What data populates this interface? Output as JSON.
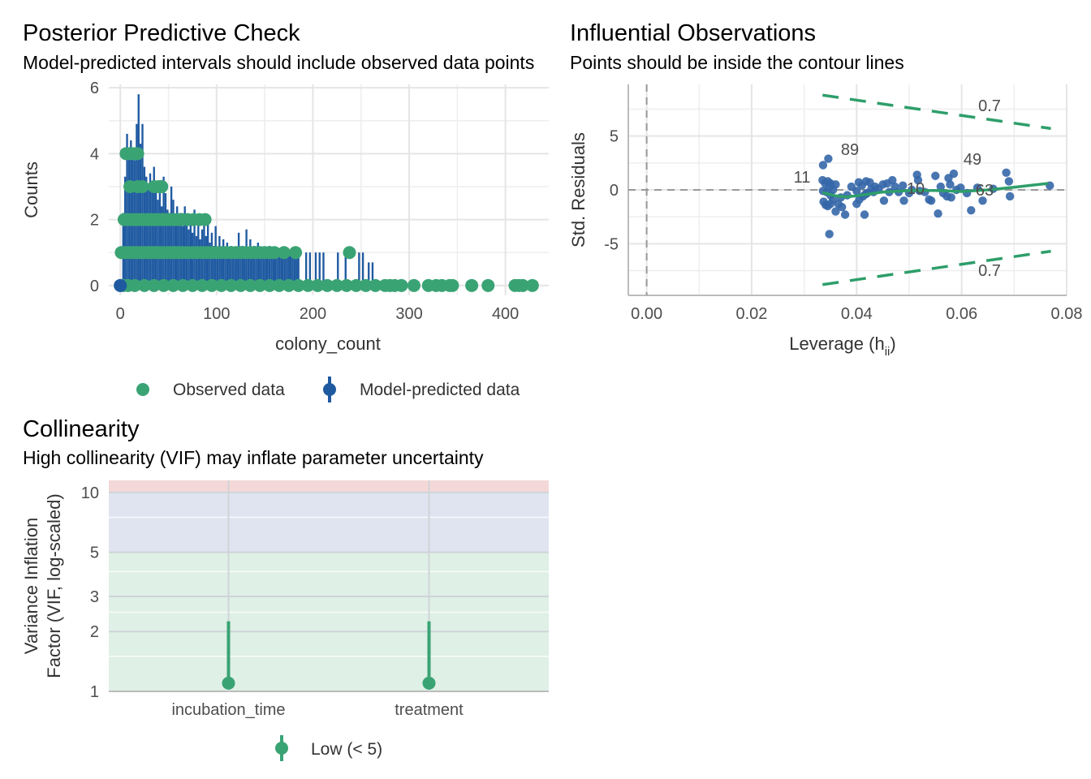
{
  "colors": {
    "observed": "#3aa374",
    "predicted": "#1f5aa1",
    "contour": "#2e9e6a",
    "point_label": "#1f5aa1",
    "vif_high": "#f4d8d8",
    "vif_moderate": "#dfe4f0",
    "vif_low": "#dff0e6"
  },
  "chart_data": [
    {
      "type": "bar",
      "title": "Posterior Predictive Check",
      "subtitle": "Model-predicted intervals should include observed data points",
      "xlabel": "colony_count",
      "ylabel": "Counts",
      "xlim": [
        -12,
        445
      ],
      "ylim": [
        -0.3,
        6.1
      ],
      "xticks": [
        "0",
        "100",
        "200",
        "300",
        "400"
      ],
      "yticks": [
        "0",
        "2",
        "4",
        "6"
      ],
      "legend": [
        "Observed data",
        "Model-predicted data"
      ],
      "legend_position": "bottom",
      "predicted_bars": [
        [
          3,
          2.2
        ],
        [
          5,
          3.3
        ],
        [
          7,
          4.6
        ],
        [
          9,
          3.9
        ],
        [
          11,
          4.4
        ],
        [
          13,
          4.1
        ],
        [
          15,
          3.8
        ],
        [
          17,
          4.9
        ],
        [
          19,
          5.8
        ],
        [
          21,
          4.3
        ],
        [
          23,
          4.9
        ],
        [
          25,
          3.6
        ],
        [
          27,
          3.3
        ],
        [
          29,
          3.0
        ],
        [
          31,
          3.4
        ],
        [
          33,
          3.1
        ],
        [
          35,
          3.6
        ],
        [
          37,
          2.9
        ],
        [
          39,
          2.6
        ],
        [
          41,
          3.1
        ],
        [
          43,
          2.4
        ],
        [
          45,
          3.3
        ],
        [
          47,
          2.8
        ],
        [
          49,
          2.3
        ],
        [
          51,
          2.2
        ],
        [
          53,
          3.0
        ],
        [
          55,
          2.6
        ],
        [
          57,
          2.1
        ],
        [
          59,
          2.4
        ],
        [
          61,
          2.0
        ],
        [
          63,
          2.2
        ],
        [
          65,
          1.8
        ],
        [
          67,
          2.4
        ],
        [
          69,
          1.9
        ],
        [
          71,
          1.7
        ],
        [
          73,
          2.1
        ],
        [
          75,
          1.6
        ],
        [
          77,
          2.3
        ],
        [
          79,
          1.5
        ],
        [
          81,
          1.9
        ],
        [
          83,
          1.4
        ],
        [
          85,
          1.7
        ],
        [
          87,
          2.0
        ],
        [
          89,
          1.5
        ],
        [
          91,
          1.9
        ],
        [
          93,
          1.3
        ],
        [
          95,
          1.6
        ],
        [
          97,
          1.2
        ],
        [
          99,
          1.8
        ],
        [
          101,
          1.0
        ],
        [
          103,
          1.5
        ],
        [
          105,
          1.1
        ],
        [
          107,
          1.4
        ],
        [
          109,
          1.0
        ],
        [
          111,
          1.3
        ],
        [
          113,
          1.0
        ],
        [
          115,
          1.2
        ],
        [
          117,
          0.9
        ],
        [
          119,
          1.1
        ],
        [
          121,
          1.0
        ],
        [
          123,
          1.6
        ],
        [
          125,
          1.0
        ],
        [
          127,
          1.2
        ],
        [
          129,
          1.0
        ],
        [
          131,
          1.7
        ],
        [
          133,
          1.0
        ],
        [
          135,
          1.4
        ],
        [
          137,
          1.0
        ],
        [
          139,
          1.2
        ],
        [
          141,
          1.0
        ],
        [
          143,
          1.3
        ],
        [
          145,
          1.0
        ],
        [
          147,
          1.1
        ],
        [
          149,
          1.0
        ],
        [
          151,
          1.0
        ],
        [
          153,
          1.0
        ],
        [
          155,
          1.2
        ],
        [
          157,
          1.0
        ],
        [
          159,
          1.0
        ],
        [
          161,
          1.0
        ],
        [
          163,
          1.0
        ],
        [
          165,
          1.0
        ],
        [
          167,
          1.0
        ],
        [
          169,
          1.0
        ],
        [
          171,
          1.0
        ],
        [
          173,
          1.0
        ],
        [
          175,
          0.9
        ],
        [
          177,
          1.0
        ],
        [
          179,
          1.0
        ],
        [
          181,
          1.0
        ],
        [
          183,
          1.0
        ],
        [
          185,
          1.0
        ],
        [
          193,
          1.0
        ],
        [
          197,
          1.0
        ],
        [
          203,
          1.0
        ],
        [
          207,
          1.0
        ],
        [
          211,
          1.0
        ],
        [
          226,
          1.0
        ],
        [
          234,
          1.0
        ],
        [
          248,
          1.0
        ],
        [
          252,
          1.0
        ],
        [
          258,
          0.7
        ],
        [
          262,
          0.7
        ]
      ],
      "observed_points": [
        [
          0,
          0
        ],
        [
          3,
          0
        ],
        [
          1,
          1
        ],
        [
          5,
          1
        ],
        [
          9,
          1
        ],
        [
          13,
          1
        ],
        [
          17,
          1
        ],
        [
          21,
          1
        ],
        [
          25,
          1
        ],
        [
          29,
          1
        ],
        [
          33,
          1
        ],
        [
          37,
          1
        ],
        [
          41,
          1
        ],
        [
          45,
          1
        ],
        [
          49,
          1
        ],
        [
          53,
          1
        ],
        [
          57,
          1
        ],
        [
          61,
          1
        ],
        [
          65,
          1
        ],
        [
          70,
          1
        ],
        [
          75,
          1
        ],
        [
          80,
          1
        ],
        [
          85,
          1
        ],
        [
          90,
          1
        ],
        [
          95,
          1
        ],
        [
          100,
          1
        ],
        [
          105,
          1
        ],
        [
          110,
          1
        ],
        [
          115,
          1
        ],
        [
          120,
          1
        ],
        [
          125,
          1
        ],
        [
          130,
          1
        ],
        [
          135,
          1
        ],
        [
          140,
          1
        ],
        [
          145,
          1
        ],
        [
          150,
          1
        ],
        [
          155,
          1
        ],
        [
          160,
          1
        ],
        [
          170,
          1
        ],
        [
          182,
          1
        ],
        [
          238,
          1
        ],
        [
          4,
          2
        ],
        [
          8,
          2
        ],
        [
          12,
          2
        ],
        [
          16,
          2
        ],
        [
          20,
          2
        ],
        [
          24,
          2
        ],
        [
          28,
          2
        ],
        [
          32,
          2
        ],
        [
          36,
          2
        ],
        [
          40,
          2
        ],
        [
          44,
          2
        ],
        [
          48,
          2
        ],
        [
          52,
          2
        ],
        [
          56,
          2
        ],
        [
          60,
          2
        ],
        [
          64,
          2
        ],
        [
          70,
          2
        ],
        [
          76,
          2
        ],
        [
          82,
          2
        ],
        [
          88,
          2
        ],
        [
          10,
          3
        ],
        [
          18,
          3
        ],
        [
          23,
          3
        ],
        [
          35,
          3
        ],
        [
          40,
          3
        ],
        [
          43,
          3
        ],
        [
          6,
          4
        ],
        [
          10,
          4
        ],
        [
          14,
          4
        ],
        [
          18,
          4
        ],
        [
          8,
          0
        ],
        [
          15,
          0
        ],
        [
          25,
          0
        ],
        [
          35,
          0
        ],
        [
          45,
          0
        ],
        [
          55,
          0
        ],
        [
          65,
          0
        ],
        [
          75,
          0
        ],
        [
          85,
          0
        ],
        [
          95,
          0
        ],
        [
          105,
          0
        ],
        [
          115,
          0
        ],
        [
          125,
          0
        ],
        [
          135,
          0
        ],
        [
          145,
          0
        ],
        [
          155,
          0
        ],
        [
          165,
          0
        ],
        [
          175,
          0
        ],
        [
          185,
          0
        ],
        [
          195,
          0
        ],
        [
          205,
          0
        ],
        [
          215,
          0
        ],
        [
          225,
          0
        ],
        [
          235,
          0
        ],
        [
          245,
          0
        ],
        [
          255,
          0
        ],
        [
          265,
          0
        ],
        [
          275,
          0
        ],
        [
          280,
          0
        ],
        [
          285,
          0
        ],
        [
          292,
          0
        ],
        [
          305,
          0
        ],
        [
          320,
          0
        ],
        [
          328,
          0
        ],
        [
          334,
          0
        ],
        [
          342,
          0
        ],
        [
          345,
          0
        ],
        [
          365,
          0
        ],
        [
          382,
          0
        ],
        [
          410,
          0
        ],
        [
          414,
          0
        ],
        [
          418,
          0
        ],
        [
          428,
          0
        ]
      ]
    },
    {
      "type": "scatter",
      "title": "Influential Observations",
      "subtitle": "Points should be inside the contour lines",
      "xlabel": "Leverage (h",
      "xlabel_sub": "ii",
      "xlabel_end": ")",
      "ylabel": "Std. Residuals",
      "xlim": [
        -0.0035,
        0.08
      ],
      "ylim": [
        -9.8,
        9.8
      ],
      "xticks": [
        "0.00",
        "0.02",
        "0.04",
        "0.06",
        "0.08"
      ],
      "yticks": [
        "5",
        "0",
        "-5"
      ],
      "contour_label": "0.7",
      "point_labels": [
        "89",
        "11",
        "49",
        "10",
        "63"
      ],
      "points": [
        [
          0.0336,
          2.3
        ],
        [
          0.0346,
          2.9
        ],
        [
          0.0335,
          0.9
        ],
        [
          0.034,
          0.6
        ],
        [
          0.0345,
          0.8
        ],
        [
          0.035,
          0.6
        ],
        [
          0.0348,
          0.3
        ],
        [
          0.0355,
          0.0
        ],
        [
          0.036,
          0.5
        ],
        [
          0.0336,
          -0.1
        ],
        [
          0.0343,
          -0.2
        ],
        [
          0.035,
          -0.5
        ],
        [
          0.0337,
          -1.1
        ],
        [
          0.0341,
          -1.4
        ],
        [
          0.0345,
          -1.5
        ],
        [
          0.035,
          -1.3
        ],
        [
          0.0355,
          -0.9
        ],
        [
          0.0365,
          -1.3
        ],
        [
          0.036,
          -2.0
        ],
        [
          0.0372,
          -1.6
        ],
        [
          0.0378,
          -2.3
        ],
        [
          0.0348,
          -4.1
        ],
        [
          0.037,
          -0.7
        ],
        [
          0.0382,
          -0.5
        ],
        [
          0.039,
          0.3
        ],
        [
          0.04,
          -0.1
        ],
        [
          0.0405,
          -0.9
        ],
        [
          0.0412,
          -0.6
        ],
        [
          0.0417,
          -0.4
        ],
        [
          0.042,
          -0.3
        ],
        [
          0.0404,
          0.7
        ],
        [
          0.041,
          0.4
        ],
        [
          0.0418,
          0.8
        ],
        [
          0.0425,
          0.7
        ],
        [
          0.0428,
          0.1
        ],
        [
          0.0432,
          -0.2
        ],
        [
          0.0435,
          0.3
        ],
        [
          0.0442,
          0.1
        ],
        [
          0.045,
          0.5
        ],
        [
          0.0458,
          0.6
        ],
        [
          0.0462,
          -0.2
        ],
        [
          0.0468,
          0.9
        ],
        [
          0.0473,
          0.3
        ],
        [
          0.0415,
          -2.3
        ],
        [
          0.04,
          -1.3
        ],
        [
          0.0452,
          -1.0
        ],
        [
          0.048,
          -0.2
        ],
        [
          0.0488,
          0.4
        ],
        [
          0.049,
          -1.0
        ],
        [
          0.05,
          -0.3
        ],
        [
          0.0505,
          0.0
        ],
        [
          0.0515,
          1.4
        ],
        [
          0.0517,
          0.9
        ],
        [
          0.052,
          -0.1
        ],
        [
          0.053,
          -0.2
        ],
        [
          0.0538,
          -0.9
        ],
        [
          0.0542,
          -1.0
        ],
        [
          0.055,
          1.3
        ],
        [
          0.0555,
          -2.2
        ],
        [
          0.056,
          0.3
        ],
        [
          0.0565,
          -0.3
        ],
        [
          0.0572,
          -0.6
        ],
        [
          0.0575,
          1.1
        ],
        [
          0.0578,
          0.5
        ],
        [
          0.058,
          -0.7
        ],
        [
          0.0585,
          1.5
        ],
        [
          0.059,
          0.0
        ],
        [
          0.0598,
          0.2
        ],
        [
          0.061,
          -0.3
        ],
        [
          0.0618,
          -1.9
        ],
        [
          0.063,
          0.2
        ],
        [
          0.064,
          -1.0
        ],
        [
          0.066,
          0.1
        ],
        [
          0.0685,
          1.6
        ],
        [
          0.069,
          0.8
        ],
        [
          0.0692,
          -0.6
        ],
        [
          0.0768,
          0.4
        ]
      ],
      "smooth_curve": [
        [
          0.0335,
          -0.25
        ],
        [
          0.036,
          -0.55
        ],
        [
          0.038,
          -0.65
        ],
        [
          0.04,
          -0.55
        ],
        [
          0.045,
          -0.2
        ],
        [
          0.05,
          -0.05
        ],
        [
          0.055,
          -0.05
        ],
        [
          0.06,
          -0.15
        ],
        [
          0.065,
          0.0
        ],
        [
          0.07,
          0.25
        ],
        [
          0.0765,
          0.6
        ]
      ],
      "contour_upper": [
        [
          0.0335,
          8.8
        ],
        [
          0.077,
          5.7
        ]
      ],
      "contour_lower": [
        [
          0.0335,
          -8.8
        ],
        [
          0.077,
          -5.7
        ]
      ]
    },
    {
      "type": "scatter",
      "title": "Collinearity",
      "subtitle": "High collinearity (VIF) may inflate parameter uncertainty",
      "ylabel_line1": "Variance Inflation",
      "ylabel_line2": "Factor (VIF, log-scaled)",
      "categories": [
        "incubation_time",
        "treatment"
      ],
      "vif": [
        1.1,
        1.1
      ],
      "vif_ci_upper": [
        2.25,
        2.25
      ],
      "yticks": [
        "1",
        "2",
        "3",
        "5",
        "10"
      ],
      "y_scale": "log",
      "ylim": [
        1,
        11.5
      ],
      "zones": {
        "low_max": 5,
        "moderate_max": 10
      },
      "legend": [
        "Low (< 5)"
      ],
      "legend_position": "bottom"
    }
  ]
}
